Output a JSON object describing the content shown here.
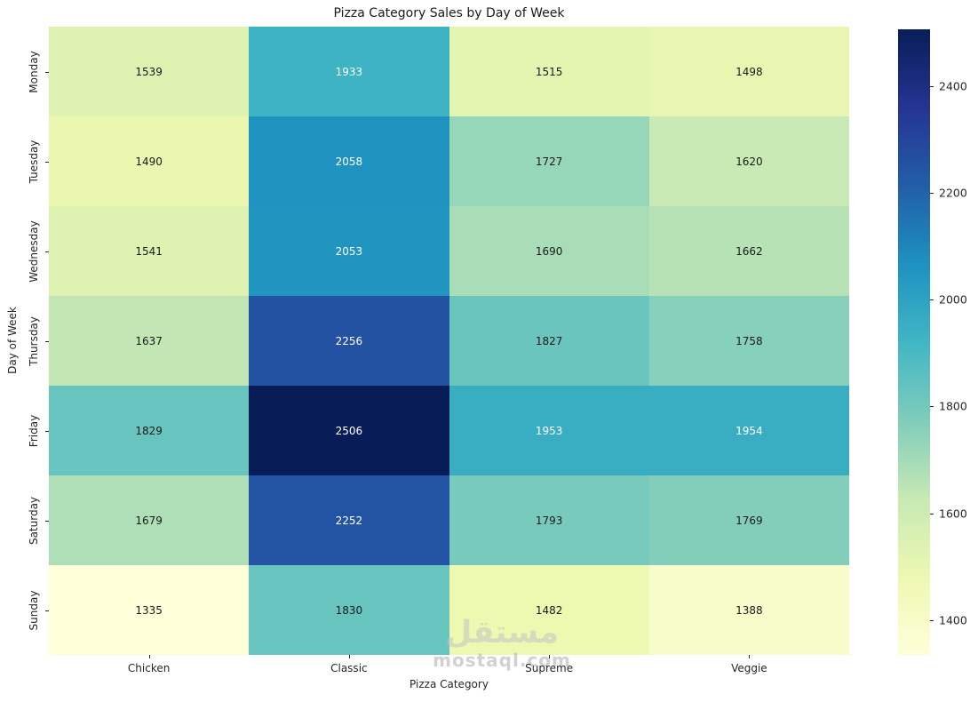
{
  "chart_data": {
    "type": "heatmap",
    "title": "Pizza Category Sales by Day of Week",
    "xlabel": "Pizza Category",
    "ylabel": "Day of Week",
    "columns": [
      "Chicken",
      "Classic",
      "Supreme",
      "Veggie"
    ],
    "rows": [
      "Monday",
      "Tuesday",
      "Wednesday",
      "Thursday",
      "Friday",
      "Saturday",
      "Sunday"
    ],
    "values": [
      [
        1539,
        1933,
        1515,
        1498
      ],
      [
        1490,
        2058,
        1727,
        1620
      ],
      [
        1541,
        2053,
        1690,
        1662
      ],
      [
        1637,
        2256,
        1827,
        1758
      ],
      [
        1829,
        2506,
        1953,
        1954
      ],
      [
        1679,
        2252,
        1793,
        1769
      ],
      [
        1335,
        1830,
        1482,
        1388
      ]
    ],
    "vmin": 1335,
    "vmax": 2506,
    "colorbar_ticks": [
      1400,
      1600,
      1800,
      2000,
      2200,
      2400
    ],
    "colormap": {
      "name": "YlGnBu",
      "stops": [
        {
          "pos": 0.0,
          "color": "#ffffd9"
        },
        {
          "pos": 0.125,
          "color": "#edf8b1"
        },
        {
          "pos": 0.25,
          "color": "#c7e9b4"
        },
        {
          "pos": 0.375,
          "color": "#7fcdbb"
        },
        {
          "pos": 0.5,
          "color": "#41b6c4"
        },
        {
          "pos": 0.625,
          "color": "#1d91c0"
        },
        {
          "pos": 0.75,
          "color": "#225ea8"
        },
        {
          "pos": 0.875,
          "color": "#253494"
        },
        {
          "pos": 1.0,
          "color": "#081d58"
        }
      ]
    },
    "annotation_dark_color": "#1a1a1a",
    "annotation_light_color": "#ffffff",
    "legend_position": "right-colorbar",
    "grid": false
  },
  "watermark": {
    "logo_text": "مستقل",
    "domain_text": "mostaql.com"
  }
}
